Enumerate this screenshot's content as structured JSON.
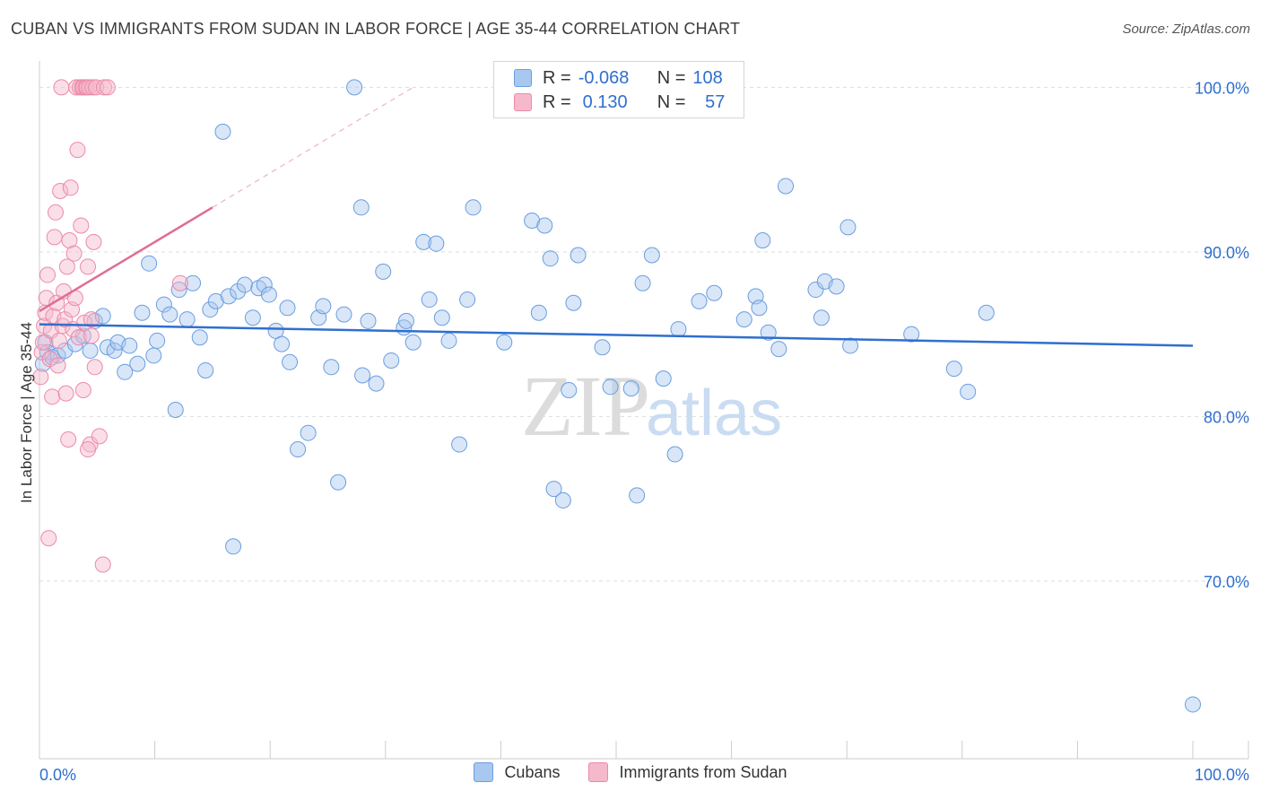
{
  "title": "CUBAN VS IMMIGRANTS FROM SUDAN IN LABOR FORCE | AGE 35-44 CORRELATION CHART",
  "source": "Source: ZipAtlas.com",
  "watermark": {
    "zip": "ZIP",
    "atlas": "atlas"
  },
  "legend_top": {
    "rows": [
      {
        "r_label": "R =",
        "r_value": "-0.068",
        "n_label": "N =",
        "n_value": "108",
        "color": "#a9c8ef"
      },
      {
        "r_label": "R =",
        "r_value": "0.130",
        "n_label": "N =",
        "n_value": "57",
        "color": "#f5b9cb"
      }
    ]
  },
  "legend_bottom": [
    {
      "label": "Cubans",
      "color": "#a9c8ef"
    },
    {
      "label": "Immigrants from Sudan",
      "color": "#f5b9cb"
    }
  ],
  "chart_data": {
    "type": "scatter",
    "title": "CUBAN VS IMMIGRANTS FROM SUDAN IN LABOR FORCE | AGE 35-44 CORRELATION CHART",
    "xlabel": "",
    "ylabel": "In Labor Force | Age 35-44",
    "xlim": [
      0,
      100
    ],
    "ylim": [
      59.2,
      101.6
    ],
    "x_tick_labels": [
      "0.0%",
      "100.0%"
    ],
    "y_ticks": [
      70,
      80,
      90,
      100
    ],
    "y_tick_labels": [
      "70.0%",
      "80.0%",
      "90.0%",
      "100.0%"
    ],
    "grid": true,
    "series": [
      {
        "name": "Cubans",
        "color": "#a9c8ef",
        "stroke": "#6a9ee0",
        "trend": {
          "x0": 0,
          "y0": 85.6,
          "x1": 100,
          "y1": 84.3,
          "color": "#2f6fce"
        },
        "points": [
          [
            0.3,
            83.2
          ],
          [
            0.5,
            84.5
          ],
          [
            0.7,
            83.9
          ],
          [
            1.1,
            83.6
          ],
          [
            1.6,
            83.7
          ],
          [
            2.2,
            84.0
          ],
          [
            3.1,
            84.4
          ],
          [
            3.8,
            84.9
          ],
          [
            4.4,
            84.0
          ],
          [
            4.8,
            85.8
          ],
          [
            5.5,
            86.1
          ],
          [
            5.9,
            84.2
          ],
          [
            6.5,
            84.0
          ],
          [
            6.8,
            84.5
          ],
          [
            7.4,
            82.7
          ],
          [
            7.8,
            84.3
          ],
          [
            8.5,
            83.2
          ],
          [
            8.9,
            86.3
          ],
          [
            9.5,
            89.3
          ],
          [
            9.9,
            83.7
          ],
          [
            10.2,
            84.6
          ],
          [
            10.8,
            86.8
          ],
          [
            11.3,
            86.2
          ],
          [
            11.8,
            80.4
          ],
          [
            12.1,
            87.7
          ],
          [
            12.8,
            85.9
          ],
          [
            13.3,
            88.1
          ],
          [
            13.9,
            84.8
          ],
          [
            14.4,
            82.8
          ],
          [
            14.8,
            86.5
          ],
          [
            15.3,
            87.0
          ],
          [
            15.9,
            97.3
          ],
          [
            16.4,
            87.3
          ],
          [
            16.8,
            72.1
          ],
          [
            17.2,
            87.6
          ],
          [
            17.8,
            88.0
          ],
          [
            18.5,
            86.0
          ],
          [
            19.0,
            87.8
          ],
          [
            19.5,
            88.0
          ],
          [
            19.9,
            87.4
          ],
          [
            20.5,
            85.2
          ],
          [
            21.0,
            84.4
          ],
          [
            21.5,
            86.6
          ],
          [
            21.7,
            83.3
          ],
          [
            22.4,
            78.0
          ],
          [
            23.3,
            79.0
          ],
          [
            24.2,
            86.0
          ],
          [
            24.6,
            86.7
          ],
          [
            25.3,
            83.0
          ],
          [
            25.9,
            76.0
          ],
          [
            26.4,
            86.2
          ],
          [
            27.3,
            100.0
          ],
          [
            27.9,
            92.7
          ],
          [
            28.0,
            82.5
          ],
          [
            28.5,
            85.8
          ],
          [
            29.2,
            82.0
          ],
          [
            29.8,
            88.8
          ],
          [
            30.5,
            83.4
          ],
          [
            31.6,
            85.4
          ],
          [
            31.8,
            85.8
          ],
          [
            32.4,
            84.5
          ],
          [
            33.3,
            90.6
          ],
          [
            33.8,
            87.1
          ],
          [
            34.4,
            90.5
          ],
          [
            34.9,
            86.0
          ],
          [
            35.5,
            84.6
          ],
          [
            36.4,
            78.3
          ],
          [
            37.1,
            87.1
          ],
          [
            37.6,
            92.7
          ],
          [
            40.3,
            84.5
          ],
          [
            42.7,
            91.9
          ],
          [
            43.3,
            86.3
          ],
          [
            43.8,
            91.6
          ],
          [
            44.3,
            89.6
          ],
          [
            44.6,
            75.6
          ],
          [
            45.4,
            74.9
          ],
          [
            45.9,
            81.6
          ],
          [
            46.3,
            86.9
          ],
          [
            46.7,
            89.8
          ],
          [
            48.8,
            84.2
          ],
          [
            49.5,
            81.8
          ],
          [
            51.3,
            81.7
          ],
          [
            51.8,
            75.2
          ],
          [
            52.3,
            88.1
          ],
          [
            53.1,
            89.8
          ],
          [
            54.1,
            82.3
          ],
          [
            55.1,
            77.7
          ],
          [
            55.4,
            85.3
          ],
          [
            57.2,
            87.0
          ],
          [
            58.5,
            87.5
          ],
          [
            61.1,
            85.9
          ],
          [
            62.1,
            87.3
          ],
          [
            62.4,
            86.6
          ],
          [
            62.7,
            90.7
          ],
          [
            63.2,
            85.1
          ],
          [
            64.1,
            84.1
          ],
          [
            64.7,
            94.0
          ],
          [
            67.3,
            87.7
          ],
          [
            67.8,
            86.0
          ],
          [
            68.1,
            88.2
          ],
          [
            69.1,
            87.9
          ],
          [
            70.1,
            91.5
          ],
          [
            70.3,
            84.3
          ],
          [
            75.6,
            85.0
          ],
          [
            79.3,
            82.9
          ],
          [
            80.5,
            81.5
          ],
          [
            82.1,
            86.3
          ],
          [
            100.0,
            62.5
          ]
        ]
      },
      {
        "name": "Immigrants from Sudan",
        "color": "#f5b9cb",
        "stroke": "#ec8aa8",
        "trend": {
          "x0": 0,
          "y0": 86.4,
          "x1": 15.0,
          "y1": 92.7,
          "dash_to_x": 32.4,
          "dash_to_y": 100.0,
          "color": "#e06c93"
        },
        "points": [
          [
            0.1,
            82.4
          ],
          [
            0.2,
            83.9
          ],
          [
            0.3,
            84.5
          ],
          [
            0.4,
            85.5
          ],
          [
            0.5,
            86.3
          ],
          [
            0.6,
            87.2
          ],
          [
            0.7,
            88.6
          ],
          [
            0.8,
            72.6
          ],
          [
            0.9,
            83.5
          ],
          [
            1.0,
            85.2
          ],
          [
            1.1,
            81.2
          ],
          [
            1.2,
            86.1
          ],
          [
            1.3,
            90.9
          ],
          [
            1.4,
            92.4
          ],
          [
            1.5,
            86.9
          ],
          [
            1.6,
            83.1
          ],
          [
            1.7,
            84.6
          ],
          [
            1.8,
            93.7
          ],
          [
            1.9,
            100.0
          ],
          [
            2.0,
            85.5
          ],
          [
            2.1,
            87.6
          ],
          [
            2.2,
            85.9
          ],
          [
            2.3,
            81.4
          ],
          [
            2.4,
            89.1
          ],
          [
            2.5,
            78.6
          ],
          [
            2.6,
            90.7
          ],
          [
            2.7,
            93.9
          ],
          [
            2.8,
            86.5
          ],
          [
            2.9,
            85.3
          ],
          [
            3.0,
            89.9
          ],
          [
            3.1,
            87.2
          ],
          [
            3.2,
            100.0
          ],
          [
            3.3,
            96.2
          ],
          [
            3.4,
            84.8
          ],
          [
            3.5,
            100.0
          ],
          [
            3.6,
            91.6
          ],
          [
            3.7,
            100.0
          ],
          [
            3.8,
            100.0
          ],
          [
            3.9,
            85.7
          ],
          [
            4.0,
            100.0
          ],
          [
            4.1,
            100.0
          ],
          [
            4.2,
            89.1
          ],
          [
            4.3,
            100.0
          ],
          [
            4.4,
            78.3
          ],
          [
            4.5,
            84.9
          ],
          [
            4.6,
            100.0
          ],
          [
            4.7,
            90.6
          ],
          [
            4.8,
            83.0
          ],
          [
            4.9,
            100.0
          ],
          [
            4.2,
            78.0
          ],
          [
            5.5,
            71.0
          ],
          [
            5.6,
            100.0
          ],
          [
            5.9,
            100.0
          ],
          [
            4.5,
            85.9
          ],
          [
            3.8,
            81.6
          ],
          [
            12.2,
            88.1
          ],
          [
            5.2,
            78.8
          ]
        ]
      }
    ]
  }
}
